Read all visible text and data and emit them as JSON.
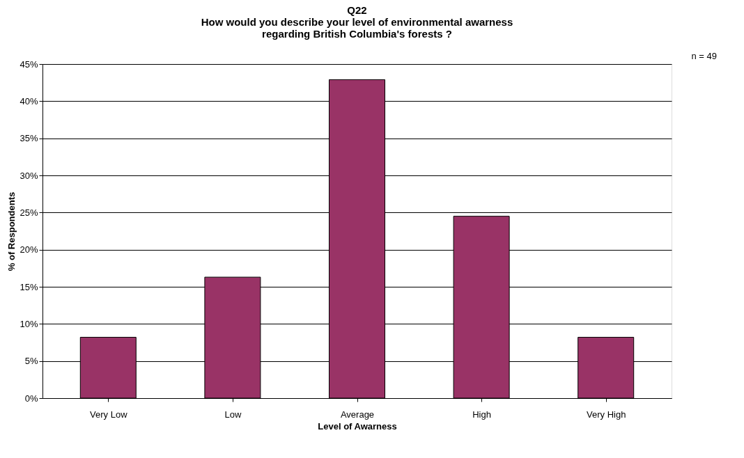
{
  "chart_data": {
    "type": "bar",
    "title": [
      "Q22",
      "How would you describe your level of environmental awarness",
      "regarding British Columbia's forests ?"
    ],
    "xlabel": "Level of Awarness",
    "ylabel": "% of Respondents",
    "categories": [
      "Very Low",
      "Low",
      "Average",
      "High",
      "Very High"
    ],
    "values": [
      8.2,
      16.3,
      42.9,
      24.5,
      8.2
    ],
    "color": "#993366",
    "ylim": [
      0,
      45
    ],
    "yticks": [
      {
        "value": 0,
        "label": "0%"
      },
      {
        "value": 5,
        "label": "5%"
      },
      {
        "value": 10,
        "label": "10%"
      },
      {
        "value": 15,
        "label": "15%"
      },
      {
        "value": 20,
        "label": "20%"
      },
      {
        "value": 25,
        "label": "25%"
      },
      {
        "value": 30,
        "label": "30%"
      },
      {
        "value": 35,
        "label": "35%"
      },
      {
        "value": 40,
        "label": "40%"
      },
      {
        "value": 45,
        "label": "45%"
      }
    ],
    "grid": "y",
    "annotations": [
      "n = 49"
    ]
  }
}
